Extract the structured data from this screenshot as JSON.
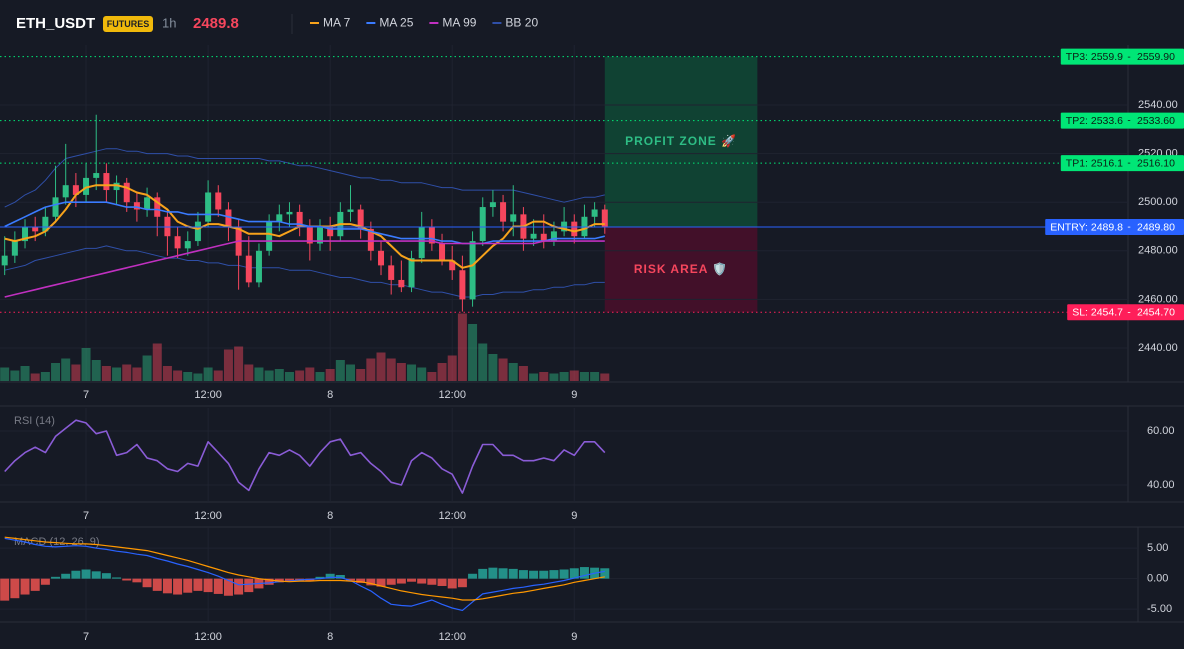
{
  "chart_data": {
    "type": "candlestick",
    "header": {
      "symbol": "ETH_USDT",
      "badge": "FUTURES",
      "interval": "1h",
      "price": 2489.8
    },
    "up_color": "#2ebd85",
    "down_color": "#f6465d",
    "xlim": [
      -8.46,
      102.44
    ],
    "xticks": [
      {
        "value": 0,
        "label": "7"
      },
      {
        "value": 12,
        "label": "12:00"
      },
      {
        "value": 24,
        "label": "8"
      },
      {
        "value": 36,
        "label": "12:00"
      },
      {
        "value": 48,
        "label": "9"
      }
    ],
    "ylim": [
      2426,
      2564.7
    ],
    "yticks": [
      {
        "value": 2440,
        "label": "2440.00"
      },
      {
        "value": 2460,
        "label": "2460.00"
      },
      {
        "value": 2480,
        "label": "2480.00"
      },
      {
        "value": 2500,
        "label": "2500.00"
      },
      {
        "value": 2520,
        "label": "2520.00"
      },
      {
        "value": 2540,
        "label": "2540.00"
      }
    ],
    "grid": true,
    "x": [
      -8,
      -7,
      -6,
      -5,
      -4,
      -3,
      -2,
      -1,
      0,
      1,
      2,
      3,
      4,
      5,
      6,
      7,
      8,
      9,
      10,
      11,
      12,
      13,
      14,
      15,
      16,
      17,
      18,
      19,
      20,
      21,
      22,
      23,
      24,
      25,
      26,
      27,
      28,
      29,
      30,
      31,
      32,
      33,
      34,
      35,
      36,
      37,
      38,
      39,
      40,
      41,
      42,
      43,
      44,
      45,
      46,
      47,
      48,
      49,
      50,
      51
    ],
    "candles": [
      [
        2474,
        2486,
        2470,
        2478
      ],
      [
        2478,
        2488,
        2475,
        2484
      ],
      [
        2484,
        2493,
        2481,
        2490
      ],
      [
        2490,
        2494,
        2484,
        2488
      ],
      [
        2488,
        2498,
        2486,
        2494
      ],
      [
        2494,
        2515,
        2492,
        2502
      ],
      [
        2502,
        2524,
        2499,
        2507
      ],
      [
        2507,
        2512,
        2498,
        2503
      ],
      [
        2503,
        2516,
        2500,
        2510
      ],
      [
        2510,
        2536,
        2505,
        2512
      ],
      [
        2512,
        2516,
        2500,
        2505
      ],
      [
        2505,
        2511,
        2499,
        2508
      ],
      [
        2508,
        2510,
        2496,
        2500
      ],
      [
        2500,
        2504,
        2492,
        2497
      ],
      [
        2497,
        2506,
        2494,
        2502
      ],
      [
        2502,
        2504,
        2486,
        2494
      ],
      [
        2494,
        2497,
        2478,
        2486
      ],
      [
        2486,
        2490,
        2477,
        2481
      ],
      [
        2481,
        2488,
        2478,
        2484
      ],
      [
        2484,
        2496,
        2482,
        2492
      ],
      [
        2492,
        2509,
        2490,
        2504
      ],
      [
        2504,
        2507,
        2494,
        2497
      ],
      [
        2497,
        2500,
        2484,
        2490
      ],
      [
        2490,
        2493,
        2464,
        2478
      ],
      [
        2478,
        2486,
        2465,
        2467
      ],
      [
        2467,
        2483,
        2465,
        2480
      ],
      [
        2480,
        2495,
        2478,
        2492
      ],
      [
        2492,
        2499,
        2488,
        2495
      ],
      [
        2495,
        2500,
        2490,
        2496
      ],
      [
        2496,
        2499,
        2486,
        2490
      ],
      [
        2490,
        2493,
        2476,
        2483
      ],
      [
        2483,
        2493,
        2480,
        2490
      ],
      [
        2490,
        2494,
        2480,
        2486
      ],
      [
        2486,
        2500,
        2484,
        2496
      ],
      [
        2496,
        2507,
        2492,
        2497
      ],
      [
        2497,
        2499,
        2485,
        2489
      ],
      [
        2489,
        2492,
        2476,
        2480
      ],
      [
        2480,
        2484,
        2470,
        2474
      ],
      [
        2474,
        2478,
        2462,
        2468
      ],
      [
        2468,
        2476,
        2463,
        2465
      ],
      [
        2465,
        2480,
        2463,
        2477
      ],
      [
        2477,
        2496,
        2475,
        2490
      ],
      [
        2490,
        2493,
        2480,
        2483
      ],
      [
        2483,
        2487,
        2474,
        2476
      ],
      [
        2476,
        2482,
        2468,
        2472
      ],
      [
        2472,
        2478,
        2455,
        2460
      ],
      [
        2460,
        2488,
        2457,
        2484
      ],
      [
        2484,
        2502,
        2482,
        2498
      ],
      [
        2498,
        2505,
        2494,
        2500
      ],
      [
        2500,
        2503,
        2488,
        2492
      ],
      [
        2492,
        2507,
        2486,
        2495
      ],
      [
        2495,
        2498,
        2480,
        2485
      ],
      [
        2485,
        2493,
        2482,
        2487
      ],
      [
        2487,
        2495,
        2481,
        2484
      ],
      [
        2484,
        2492,
        2482,
        2488
      ],
      [
        2488,
        2498,
        2486,
        2492
      ],
      [
        2492,
        2495,
        2483,
        2486
      ],
      [
        2486,
        2499,
        2485,
        2494
      ],
      [
        2494,
        2500,
        2490,
        2497
      ],
      [
        2497,
        2499,
        2487,
        2489.8
      ]
    ],
    "volume_ylim": [
      0,
      100
    ],
    "volume": [
      18,
      14,
      20,
      10,
      12,
      24,
      30,
      22,
      44,
      28,
      20,
      18,
      22,
      18,
      34,
      50,
      20,
      14,
      12,
      10,
      18,
      14,
      42,
      46,
      22,
      18,
      14,
      16,
      12,
      14,
      18,
      12,
      16,
      28,
      22,
      16,
      30,
      38,
      30,
      24,
      22,
      18,
      12,
      24,
      34,
      90,
      76,
      50,
      36,
      30,
      24,
      20,
      10,
      12,
      10,
      12,
      14,
      12,
      12,
      10
    ],
    "series": [
      {
        "name": "MA 7",
        "color": "#f7a21b",
        "values": [
          2485,
          2484,
          2485,
          2486,
          2488,
          2492,
          2497,
          2503,
          2506,
          2507,
          2507,
          2507,
          2506,
          2504,
          2503,
          2500,
          2497,
          2492,
          2490,
          2489,
          2491,
          2491,
          2490,
          2489,
          2487,
          2487,
          2487,
          2486,
          2488,
          2490,
          2490,
          2490,
          2490,
          2491,
          2491,
          2490,
          2488,
          2486,
          2482,
          2478,
          2476,
          2476,
          2476,
          2476,
          2476,
          2473,
          2474,
          2478,
          2482,
          2485,
          2490,
          2490,
          2492,
          2492,
          2490,
          2489,
          2488,
          2489,
          2491,
          2491
        ]
      },
      {
        "name": "MA 25",
        "color": "#3a7bff",
        "values": [
          2490,
          2492,
          2494,
          2496,
          2498,
          2499,
          2500,
          2500,
          2500,
          2500,
          2500,
          2499,
          2498,
          2498,
          2497,
          2497,
          2496,
          2496,
          2495,
          2495,
          2495,
          2495,
          2494,
          2493,
          2492,
          2492,
          2492,
          2492,
          2491,
          2491,
          2490,
          2490,
          2489,
          2489,
          2489,
          2489,
          2488,
          2487,
          2486,
          2485,
          2485,
          2485,
          2485,
          2484,
          2484,
          2483,
          2483,
          2483,
          2484,
          2484,
          2484,
          2484,
          2484,
          2484,
          2485,
          2485,
          2485,
          2485,
          2485,
          2486
        ]
      },
      {
        "name": "MA 99",
        "color": "#c030c0",
        "values": [
          2461,
          2462,
          2463,
          2464,
          2465,
          2466,
          2467,
          2468,
          2469,
          2470,
          2471,
          2472,
          2473,
          2474,
          2475,
          2476,
          2477,
          2478,
          2479,
          2480,
          2481,
          2482,
          2483,
          2484,
          2484,
          2484,
          2484,
          2484,
          2484,
          2484,
          2484,
          2484,
          2484,
          2484,
          2484,
          2484,
          2484,
          2484,
          2484,
          2484,
          2484,
          2484,
          2484,
          2483,
          2483,
          2483,
          2483,
          2483,
          2483,
          2483,
          2483,
          2483,
          2483,
          2484,
          2484,
          2484,
          2484,
          2484,
          2484,
          2484
        ]
      },
      {
        "name": "BB 20",
        "color": "#2f4fa8",
        "upper": [
          2498,
          2500,
          2503,
          2505,
          2509,
          2514,
          2518,
          2519,
          2520,
          2521,
          2522,
          2522,
          2521,
          2521,
          2520,
          2520,
          2520,
          2519,
          2519,
          2518,
          2518,
          2518,
          2518,
          2518,
          2518,
          2518,
          2517,
          2517,
          2516,
          2515,
          2515,
          2514,
          2513,
          2512,
          2511,
          2510,
          2510,
          2509,
          2509,
          2508,
          2508,
          2508,
          2507,
          2506,
          2506,
          2505,
          2505,
          2505,
          2505,
          2505,
          2505,
          2504,
          2503,
          2502,
          2501,
          2500,
          2501,
          2502,
          2502,
          2503
        ],
        "lower": [
          2472,
          2473,
          2474,
          2476,
          2477,
          2478,
          2479,
          2480,
          2481,
          2481,
          2482,
          2481,
          2480,
          2480,
          2479,
          2478,
          2477,
          2477,
          2476,
          2476,
          2475,
          2475,
          2474,
          2474,
          2473,
          2473,
          2473,
          2473,
          2472,
          2472,
          2472,
          2471,
          2470,
          2469,
          2469,
          2468,
          2467,
          2467,
          2466,
          2466,
          2465,
          2464,
          2463,
          2463,
          2462,
          2461,
          2461,
          2462,
          2462,
          2463,
          2463,
          2463,
          2464,
          2464,
          2465,
          2465,
          2466,
          2466,
          2467,
          2467
        ]
      }
    ],
    "levels": [
      {
        "label": "TP3: 2559.9",
        "axis_label": "2559.90",
        "value": 2559.9,
        "color": "#00e676",
        "style": "dotted"
      },
      {
        "label": "TP2: 2533.6",
        "axis_label": "2533.60",
        "value": 2533.6,
        "color": "#00e676",
        "style": "dotted"
      },
      {
        "label": "TP1: 2516.1",
        "axis_label": "2516.10",
        "value": 2516.1,
        "color": "#00e676",
        "style": "dotted"
      },
      {
        "label": "ENTRY: 2489.8",
        "axis_label": "2489.80",
        "value": 2489.8,
        "color": "#2962ff",
        "style": "solid"
      },
      {
        "label": "SL: 2454.7",
        "axis_label": "2454.70",
        "value": 2454.7,
        "color": "#ff1f5a",
        "style": "dotted"
      }
    ],
    "zone_x": [
      51,
      66
    ],
    "zones": [
      {
        "label": "PROFIT ZONE 🚀",
        "ylim": [
          2489.8,
          2559.9
        ],
        "color": "#0f4a36",
        "text_color": "#2ebd85"
      },
      {
        "label": "RISK AREA 🛡️",
        "ylim": [
          2454.7,
          2489.8
        ],
        "color": "#4a0f2a",
        "text_color": "#f6465d"
      }
    ],
    "rsi": {
      "title": "RSI (14)",
      "color": "#8a5cd6",
      "ylim": [
        33.7,
        68.5
      ],
      "yticks": [
        {
          "value": 40,
          "label": "40.00"
        },
        {
          "value": 60,
          "label": "60.00"
        }
      ],
      "values": [
        45,
        49,
        52,
        54,
        52,
        58,
        61,
        64,
        63,
        59,
        60,
        51,
        52,
        55,
        50,
        49,
        46,
        45,
        48,
        47,
        56,
        52,
        48,
        41,
        38,
        46,
        52,
        51,
        53,
        51,
        47,
        52,
        56,
        57,
        51,
        52,
        48,
        45,
        41,
        40,
        49,
        52,
        50,
        46,
        44,
        37,
        47,
        55,
        55,
        51,
        51,
        49,
        49,
        50,
        49,
        53,
        51,
        56,
        56,
        52
      ]
    },
    "macd": {
      "title": "MACD (12, 26, 9)",
      "ylim": [
        -7.1,
        8.3
      ],
      "yticks": [
        {
          "value": -5,
          "label": "-5.00"
        },
        {
          "value": 0,
          "label": "0.00"
        },
        {
          "value": 5,
          "label": "5.00"
        }
      ],
      "histogram": {
        "up_color": "#26a69a",
        "down_color": "#ef5350",
        "values": [
          -3.6,
          -3.2,
          -2.6,
          -2.0,
          -1.0,
          0.3,
          0.8,
          1.3,
          1.5,
          1.2,
          0.9,
          0.2,
          -0.3,
          -0.6,
          -1.4,
          -2.0,
          -2.4,
          -2.6,
          -2.3,
          -2.0,
          -2.2,
          -2.5,
          -2.8,
          -2.6,
          -2.2,
          -1.6,
          -1.0,
          -0.6,
          -0.4,
          -0.3,
          -0.4,
          0.3,
          0.8,
          0.6,
          -0.3,
          -0.7,
          -1.1,
          -1.3,
          -1.0,
          -0.8,
          -0.5,
          -0.8,
          -1.0,
          -1.2,
          -1.6,
          -1.4,
          0.8,
          1.6,
          1.8,
          1.7,
          1.6,
          1.4,
          1.3,
          1.3,
          1.4,
          1.5,
          1.7,
          1.9,
          1.8,
          1.7
        ]
      },
      "macd_line": {
        "color": "#2962ff",
        "values": [
          6.6,
          6.3,
          6.0,
          5.6,
          5.3,
          5.2,
          5.3,
          5.4,
          5.3,
          5.0,
          4.8,
          4.5,
          4.3,
          4.0,
          3.8,
          3.3,
          2.9,
          2.4,
          2.0,
          1.5,
          1.0,
          0.4,
          -0.3,
          -1.0,
          -0.9,
          -0.8,
          -0.7,
          -0.5,
          -0.4,
          -0.2,
          -0.1,
          0.0,
          0.2,
          0.2,
          -0.3,
          -1.2,
          -2.0,
          -3.2,
          -4.2,
          -4.4,
          -4.5,
          -4.0,
          -3.5,
          -4.2,
          -4.8,
          -5.2,
          -3.8,
          -2.5,
          -2.2,
          -1.9,
          -1.6,
          -1.4,
          -1.1,
          -0.9,
          -0.6,
          -0.3,
          0.1,
          0.5,
          0.9,
          1.2
        ]
      },
      "signal_line": {
        "color": "#ff9800",
        "values": [
          6.8,
          6.6,
          6.4,
          6.2,
          6.0,
          5.9,
          5.8,
          5.7,
          5.7,
          5.6,
          5.4,
          5.2,
          5.0,
          4.8,
          4.6,
          4.2,
          3.8,
          3.4,
          3.0,
          2.5,
          2.0,
          1.5,
          1.0,
          0.6,
          0.3,
          0.0,
          -0.2,
          -0.4,
          -0.5,
          -0.4,
          -0.4,
          -0.3,
          -0.3,
          -0.3,
          -0.4,
          -0.5,
          -0.8,
          -1.2,
          -1.6,
          -2.0,
          -2.3,
          -2.6,
          -2.8,
          -3.0,
          -3.2,
          -3.5,
          -3.5,
          -3.3,
          -3.0,
          -2.7,
          -2.4,
          -2.2,
          -1.9,
          -1.6,
          -1.3,
          -1.0,
          -0.6,
          -0.3,
          0.0,
          0.3
        ]
      }
    }
  }
}
